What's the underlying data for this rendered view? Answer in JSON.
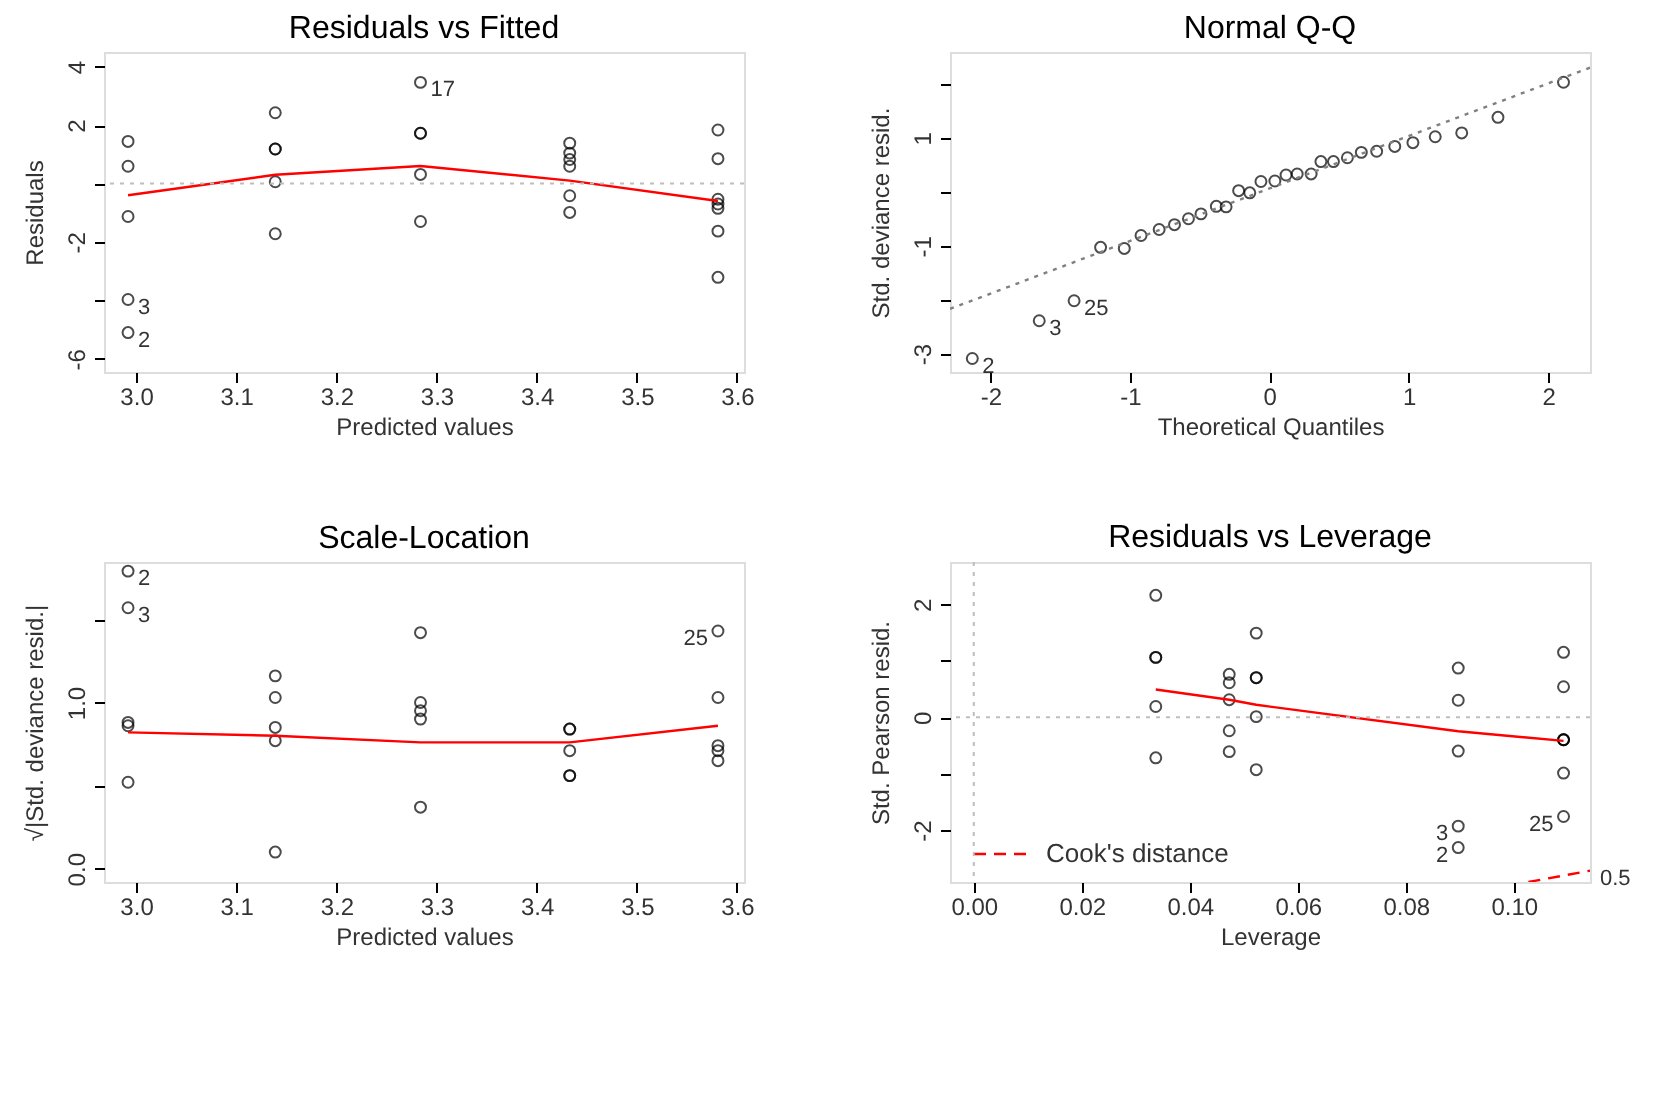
{
  "chart_data": [
    {
      "type": "scatter",
      "title": "Residuals vs Fitted",
      "xlabel": "Predicted values",
      "ylabel": "Residuals",
      "marker": "circle",
      "grid": false,
      "xlim": [
        2.968,
        3.607
      ],
      "xticks": [
        {
          "value": 3,
          "label": "3.0"
        },
        3.1,
        3.2,
        3.3,
        3.4,
        3.5,
        3.6
      ],
      "ylim": [
        -6.45,
        4.5
      ],
      "yticks": [
        4,
        2,
        {
          "value": 0,
          "label": null
        },
        -2,
        {
          "value": -4,
          "label": null
        },
        -6
      ],
      "series": [
        {
          "color": "#000000",
          "x": [
            2.992,
            2.992,
            2.992,
            2.992,
            2.992,
            3.139,
            3.139,
            3.139,
            3.139,
            3.139,
            3.284,
            3.284,
            3.284,
            3.284,
            3.284,
            3.433,
            3.433,
            3.433,
            3.433,
            3.433,
            3.433,
            3.581,
            3.581,
            3.581,
            3.581,
            3.581,
            3.581,
            3.581
          ],
          "values": [
            1.44,
            0.59,
            -1.13,
            -3.97,
            -5.1,
            2.42,
            1.18,
            1.18,
            0.06,
            -1.72,
            3.46,
            1.72,
            1.72,
            0.31,
            -1.3,
            1.38,
            1.04,
            0.82,
            0.59,
            -0.42,
            -0.99,
            1.83,
            0.85,
            -0.54,
            -0.7,
            -0.85,
            -1.63,
            -3.21
          ]
        },
        {
          "type": "line",
          "color": "#ff0000",
          "line_style": "solid",
          "marker": "none",
          "x": [
            2.992,
            3.139,
            3.284,
            3.433,
            3.581
          ],
          "values": [
            -0.4,
            0.3,
            0.6,
            0.1,
            -0.6
          ]
        }
      ],
      "ref_lines": [
        {
          "axis": "y",
          "value": 0,
          "color": "#bebebe",
          "line_style": "dotted"
        }
      ],
      "annotations": [
        {
          "text": "17",
          "x": 3.284,
          "y": 3.46
        },
        {
          "text": "3",
          "x": 2.992,
          "y": -3.97
        },
        {
          "text": "2",
          "x": 2.992,
          "y": -5.1
        }
      ]
    },
    {
      "type": "scatter",
      "title": "Normal Q-Q",
      "xlabel": "Theoretical Quantiles",
      "ylabel": "Std. deviance resid.",
      "marker": "circle",
      "grid": false,
      "xlim": [
        -2.29,
        2.3
      ],
      "xticks": [
        -2,
        -1,
        0,
        1,
        2
      ],
      "ylim": [
        -3.34,
        2.59
      ],
      "yticks": [
        {
          "value": 2,
          "label": null
        },
        1,
        {
          "value": 0,
          "label": null
        },
        -1,
        {
          "value": -2,
          "label": null
        },
        -3
      ],
      "series": [
        {
          "color": "#000000",
          "x": [
            -2.13,
            -1.65,
            -1.4,
            -1.21,
            -1.04,
            -0.92,
            -0.79,
            -0.68,
            -0.58,
            -0.49,
            -0.38,
            -0.31,
            -0.22,
            -0.14,
            -0.06,
            0.04,
            0.12,
            0.2,
            0.3,
            0.37,
            0.46,
            0.56,
            0.66,
            0.77,
            0.9,
            1.03,
            1.19,
            1.38,
            1.64,
            2.11
          ],
          "values": [
            -3.09,
            -2.39,
            -2.02,
            -1.03,
            -1.05,
            -0.81,
            -0.7,
            -0.61,
            -0.5,
            -0.41,
            -0.27,
            -0.28,
            0.02,
            -0.02,
            0.19,
            0.2,
            0.31,
            0.33,
            0.33,
            0.56,
            0.56,
            0.63,
            0.73,
            0.75,
            0.84,
            0.91,
            1.02,
            1.09,
            1.38,
            2.03
          ]
        },
        {
          "type": "line",
          "color": "#808080",
          "line_style": "dotted",
          "marker": "none",
          "x": [
            -2.29,
            2.3
          ],
          "values": [
            -2.17,
            2.3
          ]
        }
      ],
      "annotations": [
        {
          "text": "2",
          "x": -2.13,
          "y": -3.09
        },
        {
          "text": "3",
          "x": -1.65,
          "y": -2.39
        },
        {
          "text": "25",
          "x": -1.4,
          "y": -2.02
        }
      ]
    },
    {
      "type": "scatter",
      "title": "Scale-Location",
      "xlabel": "Predicted values",
      "ylabel": "√|Std. deviance resid.|",
      "marker": "circle",
      "grid": false,
      "xlim": [
        2.968,
        3.607
      ],
      "xticks": [
        {
          "value": 3,
          "label": "3.0"
        },
        3.1,
        3.2,
        3.3,
        3.4,
        3.5,
        3.6
      ],
      "ylim": [
        -0.08,
        1.845
      ],
      "yticks": [
        {
          "value": 0,
          "label": "0.0"
        },
        {
          "value": 0.5,
          "label": null
        },
        {
          "value": 1,
          "label": "1.0"
        },
        {
          "value": 1.5,
          "label": null
        }
      ],
      "series": [
        {
          "color": "#000000",
          "x": [
            2.992,
            2.992,
            2.992,
            2.992,
            2.992,
            3.139,
            3.139,
            3.139,
            3.139,
            3.139,
            3.284,
            3.284,
            3.284,
            3.284,
            3.284,
            3.433,
            3.433,
            3.433,
            3.433,
            3.433,
            3.581,
            3.581,
            3.581,
            3.581,
            3.581
          ],
          "values": [
            1.79,
            1.57,
            0.88,
            0.86,
            0.52,
            1.16,
            1.03,
            0.85,
            0.77,
            0.1,
            1.42,
            1.0,
            0.95,
            0.9,
            0.37,
            0.84,
            0.84,
            0.71,
            0.56,
            0.56,
            1.43,
            1.03,
            0.74,
            0.71,
            0.65
          ]
        },
        {
          "type": "line",
          "color": "#ff0000",
          "line_style": "solid",
          "marker": "none",
          "x": [
            2.992,
            3.139,
            3.284,
            3.433,
            3.581
          ],
          "values": [
            0.82,
            0.8,
            0.76,
            0.76,
            0.86
          ]
        }
      ],
      "annotations": [
        {
          "text": "2",
          "x": 2.992,
          "y": 1.79
        },
        {
          "text": "3",
          "x": 2.992,
          "y": 1.57
        },
        {
          "text": "25",
          "x": 3.581,
          "y": 1.43
        }
      ]
    },
    {
      "type": "scatter",
      "title": "Residuals vs Leverage",
      "xlabel": "Leverage",
      "ylabel": "Std. Pearson resid.",
      "marker": "circle",
      "grid": false,
      "legend": "bottom left",
      "xlim": [
        -0.0044,
        0.1141
      ],
      "xticks": [
        {
          "value": 0,
          "label": "0.00"
        },
        0.02,
        0.04,
        0.06,
        0.08,
        {
          "value": 0.1,
          "label": "0.10"
        }
      ],
      "ylim": [
        -2.92,
        2.75
      ],
      "yticks": [
        2,
        {
          "value": 1,
          "label": null
        },
        0,
        {
          "value": -1,
          "label": null
        },
        -2
      ],
      "series": [
        {
          "color": "#000000",
          "x": [
            0.0337,
            0.0337,
            0.0337,
            0.0337,
            0.0337,
            0.0473,
            0.0473,
            0.0473,
            0.0473,
            0.0473,
            0.0523,
            0.0523,
            0.0523,
            0.0523,
            0.0523,
            0.0897,
            0.0897,
            0.0897,
            0.0897,
            0.0897,
            0.1092,
            0.1092,
            0.1092,
            0.1092,
            0.1092,
            0.1092,
            0.1092
          ],
          "values": [
            2.16,
            1.06,
            1.06,
            0.19,
            -0.72,
            0.76,
            0.61,
            0.31,
            -0.24,
            -0.61,
            1.49,
            0.7,
            0.7,
            0.01,
            -0.93,
            0.87,
            0.3,
            -0.6,
            -1.93,
            -2.31,
            1.15,
            0.54,
            -0.4,
            -0.4,
            -0.4,
            -0.99,
            -1.76
          ]
        },
        {
          "type": "line",
          "color": "#ff0000",
          "line_style": "solid",
          "marker": "none",
          "x": [
            0.0337,
            0.0473,
            0.0523,
            0.0897,
            0.1092
          ],
          "values": [
            0.49,
            0.31,
            0.22,
            -0.25,
            -0.42
          ]
        },
        {
          "type": "line",
          "name": "Cook's distance",
          "color": "#ff0000",
          "line_style": "dashed",
          "marker": "none",
          "x": [
            0.1027,
            0.1141
          ],
          "values": [
            -2.92,
            -2.72
          ]
        }
      ],
      "ref_lines": [
        {
          "axis": "y",
          "value": 0,
          "color": "#bebebe",
          "line_style": "dotted"
        },
        {
          "axis": "x",
          "value": 0,
          "color": "#bebebe",
          "line_style": "dotted"
        }
      ],
      "annotations": [
        {
          "text": "3",
          "x": 0.0897,
          "y": -1.93
        },
        {
          "text": "2",
          "x": 0.0897,
          "y": -2.31
        },
        {
          "text": "25",
          "x": 0.1092,
          "y": -1.76
        },
        {
          "text": "0.5",
          "x": 0.1141,
          "y": -2.72
        }
      ]
    }
  ]
}
